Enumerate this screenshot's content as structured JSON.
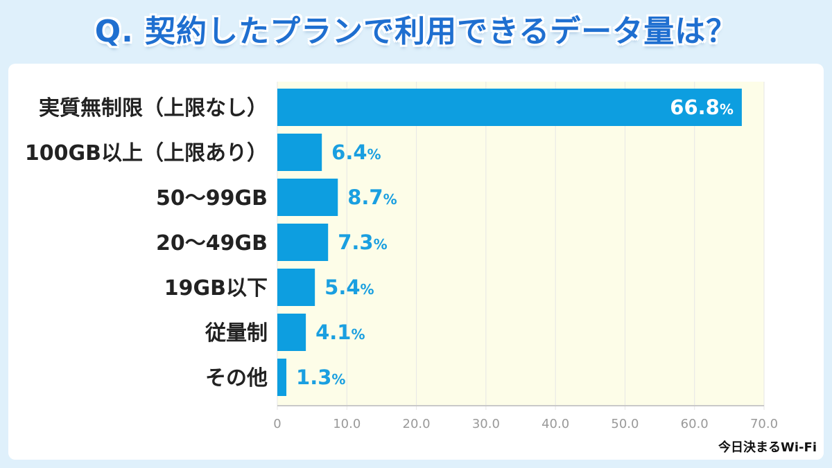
{
  "header": {
    "title": "Q. 契約したプランで利用できるデータ量は？"
  },
  "footer": {
    "credit": "今日決まるWi-Fi"
  },
  "colors": {
    "bar": "#0d9ee0",
    "plot_bg": "#fdfde8",
    "label_dark": "#222222",
    "value_blue": "#1a9fe0",
    "axis": "#c8c8c8",
    "tick_text": "#999999"
  },
  "chart_data": {
    "type": "bar",
    "orientation": "horizontal",
    "title": "Q. 契約したプランで利用できるデータ量は？",
    "categories": [
      "実質無制限（上限なし）",
      "100GB以上（上限あり）",
      "50〜99GB",
      "20〜49GB",
      "19GB以下",
      "従量制",
      "その他"
    ],
    "values": [
      66.8,
      6.4,
      8.7,
      7.3,
      5.4,
      4.1,
      1.3
    ],
    "value_suffix": "%",
    "xlim": [
      0,
      70
    ],
    "xticks": [
      0,
      10,
      20,
      30,
      40,
      50,
      60,
      70
    ],
    "xtick_labels": [
      "0",
      "10.0",
      "20.0",
      "30.0",
      "40.0",
      "50.0",
      "60.0",
      "70.0"
    ],
    "xlabel": "",
    "ylabel": "",
    "grid": true,
    "legend": "none"
  }
}
